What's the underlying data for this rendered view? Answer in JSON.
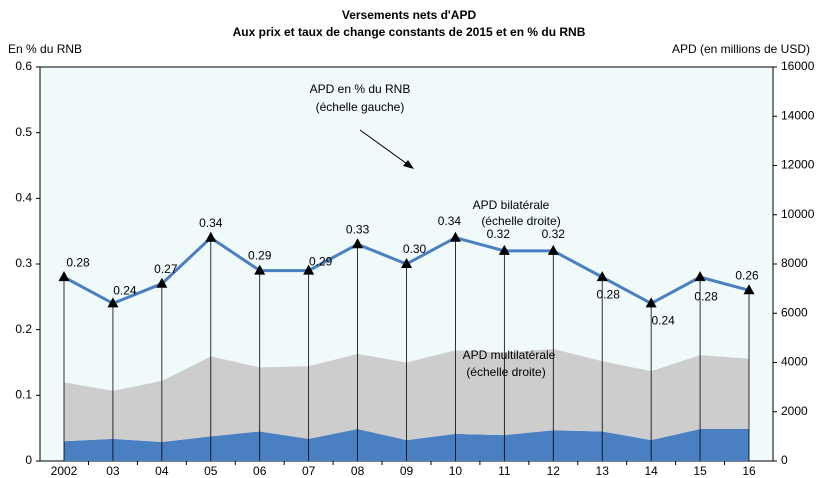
{
  "chart_data": {
    "type": "line",
    "title": "Versements nets d'APD",
    "subtitle": "Aux prix et taux de change constants de 2015 et en % du RNB",
    "y_label": "En % du RNB",
    "y2_label": "APD (en millions de USD)",
    "annotations": [
      "APD en % du RNB",
      "(échelle gauche)",
      "APD bilatérale",
      "(échelle droite)",
      "APD multilatérale",
      "(échelle droite)"
    ],
    "categories": [
      "2002",
      "03",
      "04",
      "05",
      "06",
      "07",
      "08",
      "09",
      "10",
      "11",
      "12",
      "13",
      "14",
      "15",
      "16"
    ],
    "series": [
      {
        "type": "area",
        "axis": "y2",
        "color": "#4a7fc1",
        "values": [
          800,
          900,
          770,
          1000,
          1200,
          900,
          1300,
          850,
          1100,
          1050,
          1250,
          1200,
          850,
          1300,
          1300
        ]
      },
      {
        "type": "area",
        "axis": "y2",
        "color": "#cdcdcd",
        "values": [
          2400,
          1950,
          2480,
          3250,
          2600,
          2950,
          3050,
          3150,
          3400,
          3350,
          3300,
          2850,
          2800,
          3000,
          2850
        ]
      },
      {
        "type": "line",
        "axis": "y",
        "color": "#4a7fc1",
        "values": [
          0.28,
          0.24,
          0.27,
          0.34,
          0.29,
          0.29,
          0.33,
          0.3,
          0.34,
          0.32,
          0.32,
          0.28,
          0.24,
          0.28,
          0.26
        ],
        "value_labels": [
          "0.28",
          "0.24",
          "0.27",
          "0.34",
          "0.29",
          "0.29",
          "0.33",
          "0.30",
          "0.34",
          "0.32",
          "0.32",
          "0.28",
          "0.24",
          "0.28",
          "0.26"
        ]
      }
    ],
    "ylim": [
      0,
      0.6
    ],
    "yticks": [
      0,
      0.1,
      0.2,
      0.3,
      0.4,
      0.5,
      0.6
    ],
    "y2lim": [
      0,
      16000
    ],
    "y2ticks": [
      0,
      2000,
      4000,
      6000,
      8000,
      10000,
      12000,
      14000,
      16000
    ]
  }
}
